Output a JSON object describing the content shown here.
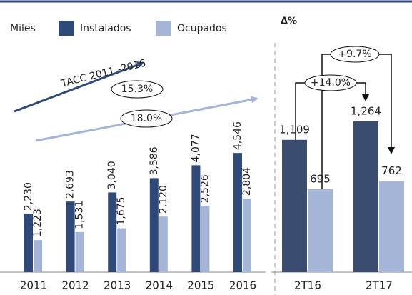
{
  "chart_data": [
    {
      "type": "bar",
      "unit_label": "Miles",
      "categories": [
        "2011",
        "2012",
        "2013",
        "2014",
        "2015",
        "2016"
      ],
      "series": [
        {
          "name": "Instalados",
          "color": "#2f4a78",
          "values": [
            2230,
            2693,
            3040,
            3586,
            4077,
            4546
          ],
          "value_labels": [
            "2,230",
            "2,693",
            "3,040",
            "3,586",
            "4,077",
            "4,546"
          ]
        },
        {
          "name": "Ocupados",
          "color": "#a4b5d8",
          "values": [
            1223,
            1531,
            1675,
            2120,
            2526,
            2804
          ],
          "value_labels": [
            "1,223",
            "1,531",
            "1,675",
            "2,120",
            "2,526",
            "2,804"
          ]
        }
      ],
      "annotations": [
        "TACC 2011 -2016",
        "15.3%",
        "18.0%"
      ]
    },
    {
      "type": "bar",
      "title": "Δ%",
      "categories": [
        "2T16",
        "2T17"
      ],
      "series": [
        {
          "color": "#3a4d70",
          "values": [
            1109,
            1264
          ],
          "value_labels": [
            "1,109",
            "1,264"
          ]
        },
        {
          "color": "#a4b5d8",
          "values": [
            695,
            762
          ]
        }
      ],
      "annotations": [
        "+9.7%",
        "+14.0%"
      ]
    }
  ]
}
